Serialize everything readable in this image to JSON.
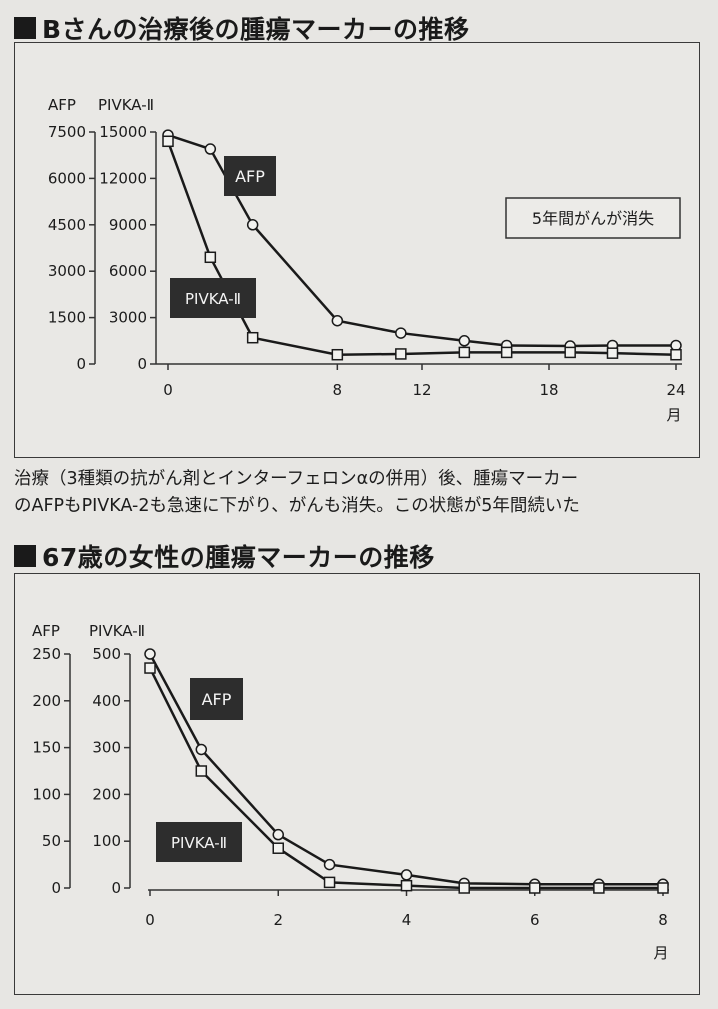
{
  "figure1": {
    "title": "Bさんの治療後の腫瘍マーカーの推移",
    "caption_line1": "治療（3種類の抗がん剤とインターフェロンαの併用）後、腫瘍マーカー",
    "caption_line2": "のAFPもPIVKA-2も急速に下がり、がんも消失。この状態が5年間続いた"
  },
  "figure2": {
    "title": "67歳の女性の腫瘍マーカーの推移"
  },
  "chart_data": [
    {
      "type": "line",
      "title": "Bさんの治療後の腫瘍マーカーの推移",
      "xlabel": "月",
      "x_ticks": [
        "0",
        "8",
        "12",
        "18",
        "24"
      ],
      "xlim": [
        0,
        24
      ],
      "left_axis": {
        "label": "AFP",
        "ticks": [
          "7500",
          "6000",
          "4500",
          "3000",
          "1500",
          "0"
        ],
        "lim": [
          0,
          7500
        ]
      },
      "right_axis": {
        "label": "PIVKA-Ⅱ",
        "ticks": [
          "15000",
          "12000",
          "9000",
          "6000",
          "3000",
          "0"
        ],
        "lim": [
          0,
          15000
        ]
      },
      "annotation": "5年間がんが消失",
      "series": [
        {
          "name": "AFP",
          "axis": "left",
          "marker": "circle",
          "x": [
            0,
            2,
            4,
            8,
            11,
            14,
            16,
            19,
            21,
            24
          ],
          "y": [
            7400,
            6950,
            4500,
            1400,
            1000,
            750,
            600,
            580,
            600,
            600
          ]
        },
        {
          "name": "PIVKA-Ⅱ",
          "axis": "right",
          "marker": "square",
          "x": [
            0,
            2,
            4,
            8,
            11,
            14,
            16,
            19,
            21,
            24
          ],
          "y": [
            14400,
            6900,
            1700,
            600,
            650,
            750,
            750,
            750,
            700,
            600
          ]
        }
      ]
    },
    {
      "type": "line",
      "title": "67歳の女性の腫瘍マーカーの推移",
      "xlabel": "月",
      "x_ticks": [
        "0",
        "2",
        "4",
        "6",
        "8"
      ],
      "xlim": [
        0,
        8
      ],
      "left_axis": {
        "label": "AFP",
        "ticks": [
          "250",
          "200",
          "150",
          "100",
          "50",
          "0"
        ],
        "lim": [
          0,
          250
        ]
      },
      "right_axis": {
        "label": "PIVKA-Ⅱ",
        "ticks": [
          "500",
          "400",
          "300",
          "200",
          "100",
          "0"
        ],
        "lim": [
          0,
          500
        ]
      },
      "series": [
        {
          "name": "AFP",
          "axis": "left",
          "marker": "circle",
          "x": [
            0,
            0.8,
            2,
            2.8,
            4,
            4.9,
            6,
            7,
            8
          ],
          "y": [
            250,
            148,
            57,
            25,
            14,
            5,
            4,
            4,
            4
          ]
        },
        {
          "name": "PIVKA-Ⅱ",
          "axis": "right",
          "marker": "square",
          "x": [
            0,
            0.8,
            2,
            2.8,
            4,
            4.9,
            6,
            7,
            8
          ],
          "y": [
            470,
            250,
            85,
            12,
            5,
            0,
            0,
            0,
            0
          ]
        }
      ]
    }
  ]
}
